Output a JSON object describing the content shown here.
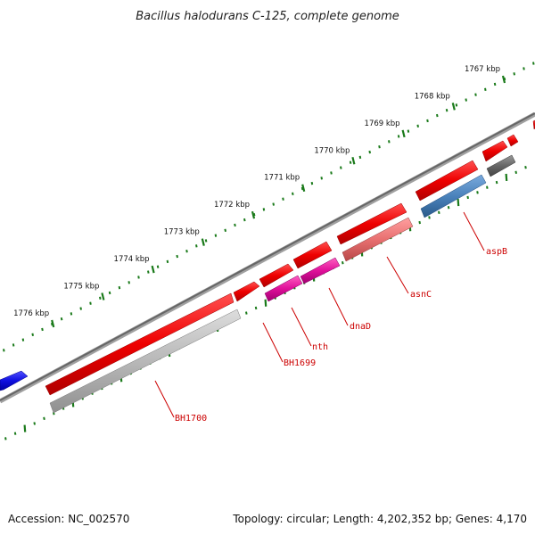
{
  "title": "Bacillus halodurans C-125, complete genome",
  "ticks": [
    {
      "kbp": 1767,
      "label": "1767 kbp"
    },
    {
      "kbp": 1768,
      "label": "1768 kbp"
    },
    {
      "kbp": 1769,
      "label": "1769 kbp"
    },
    {
      "kbp": 1770,
      "label": "1770 kbp"
    },
    {
      "kbp": 1771,
      "label": "1771 kbp"
    },
    {
      "kbp": 1772,
      "label": "1772 kbp"
    },
    {
      "kbp": 1773,
      "label": "1773 kbp"
    },
    {
      "kbp": 1774,
      "label": "1774 kbp"
    },
    {
      "kbp": 1775,
      "label": "1775 kbp"
    },
    {
      "kbp": 1776,
      "label": "1776 kbp"
    }
  ],
  "genes": [
    {
      "name": "BH1700",
      "color": "#c0c0c0"
    },
    {
      "name": "BH1699",
      "color": "#e00000"
    },
    {
      "name": "nth",
      "color": "#e0109a"
    },
    {
      "name": "dnaD",
      "color": "#e0109a"
    },
    {
      "name": "asnC",
      "color": "#e87070"
    },
    {
      "name": "aspB",
      "color": "#4a82bb"
    }
  ],
  "colors": {
    "forward_strand": "#ee0000",
    "reverse_gray": "#b8b8b8",
    "pink": "#e0109a",
    "salmon": "#e87070",
    "steel_blue": "#4a82bb",
    "dark_gray": "#666666",
    "blue": "#1010e0",
    "backbone": "#777777",
    "tick_green": "#1a7a1a",
    "label_red": "#cc0000"
  },
  "footer": {
    "accession": "Accession: NC_002570",
    "topology": "Topology: circular; Length: 4,202,352 bp; Genes: 4,170"
  }
}
